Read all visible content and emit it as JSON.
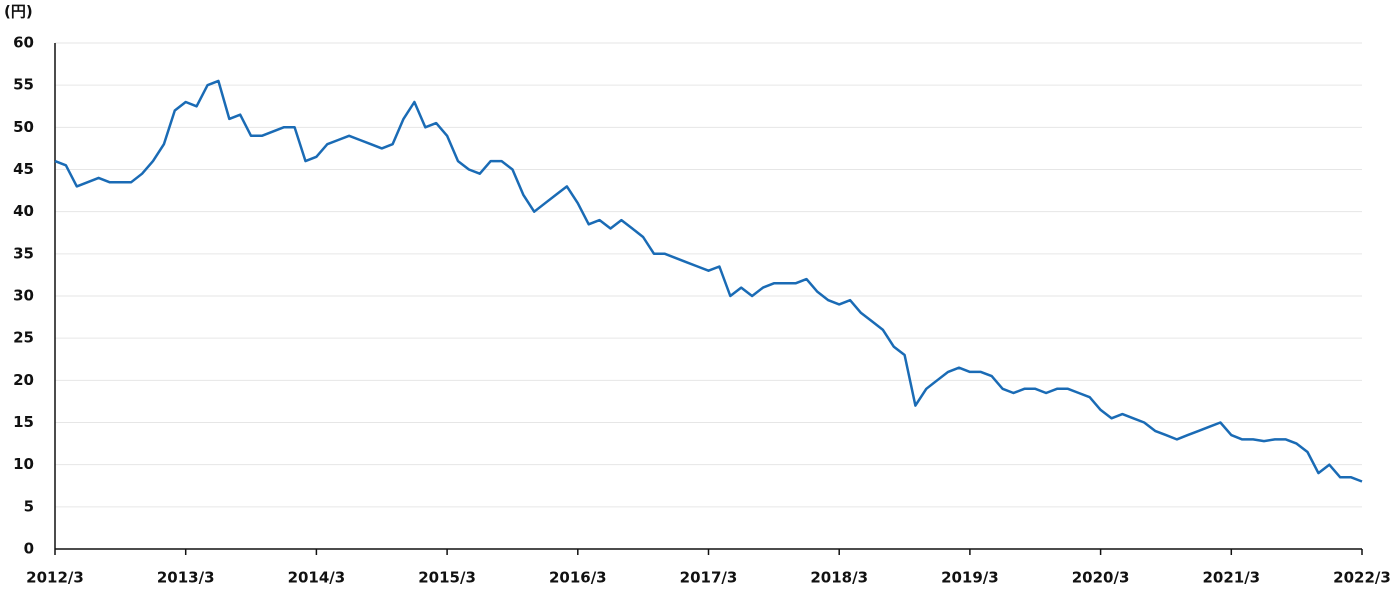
{
  "chart_data": {
    "type": "line",
    "y_unit": "(円)",
    "x": [
      "2012/3",
      "2012/4",
      "2012/5",
      "2012/6",
      "2012/7",
      "2012/8",
      "2012/9",
      "2012/10",
      "2012/11",
      "2012/12",
      "2013/1",
      "2013/2",
      "2013/3",
      "2013/4",
      "2013/5",
      "2013/6",
      "2013/7",
      "2013/8",
      "2013/9",
      "2013/10",
      "2013/11",
      "2013/12",
      "2014/1",
      "2014/2",
      "2014/3",
      "2014/4",
      "2014/5",
      "2014/6",
      "2014/7",
      "2014/8",
      "2014/9",
      "2014/10",
      "2014/11",
      "2014/12",
      "2015/1",
      "2015/2",
      "2015/3",
      "2015/4",
      "2015/5",
      "2015/6",
      "2015/7",
      "2015/8",
      "2015/9",
      "2015/10",
      "2015/11",
      "2015/12",
      "2016/1",
      "2016/2",
      "2016/3",
      "2016/4",
      "2016/5",
      "2016/6",
      "2016/7",
      "2016/8",
      "2016/9",
      "2016/10",
      "2016/11",
      "2016/12",
      "2017/1",
      "2017/2",
      "2017/3",
      "2017/4",
      "2017/5",
      "2017/6",
      "2017/7",
      "2017/8",
      "2017/9",
      "2017/10",
      "2017/11",
      "2017/12",
      "2018/1",
      "2018/2",
      "2018/3",
      "2018/4",
      "2018/5",
      "2018/6",
      "2018/7",
      "2018/8",
      "2018/9",
      "2018/10",
      "2018/11",
      "2018/12",
      "2019/1",
      "2019/2",
      "2019/3",
      "2019/4",
      "2019/5",
      "2019/6",
      "2019/7",
      "2019/8",
      "2019/9",
      "2019/10",
      "2019/11",
      "2019/12",
      "2020/1",
      "2020/2",
      "2020/3",
      "2020/4",
      "2020/5",
      "2020/6",
      "2020/7",
      "2020/8",
      "2020/9",
      "2020/10",
      "2020/11",
      "2020/12",
      "2021/1",
      "2021/2",
      "2021/3",
      "2021/4",
      "2021/5",
      "2021/6",
      "2021/7",
      "2021/8",
      "2021/9",
      "2021/10",
      "2021/11",
      "2021/12",
      "2022/1",
      "2022/2",
      "2022/3"
    ],
    "series": [
      {
        "color": "#1a6bb5",
        "values": [
          46,
          45.5,
          43,
          43.5,
          44,
          43.5,
          43.5,
          43.5,
          44.5,
          46,
          48,
          52,
          53,
          52.5,
          55,
          55.5,
          51,
          51.5,
          49,
          49,
          49.5,
          50,
          50,
          46,
          46.5,
          48,
          48.5,
          49,
          48.5,
          48,
          47.5,
          48,
          51,
          53,
          50,
          50.5,
          49,
          46,
          45,
          44.5,
          46,
          46,
          45,
          42,
          40,
          41,
          42,
          43,
          41,
          38.5,
          39,
          38,
          39,
          38,
          37,
          35,
          35,
          34.5,
          34,
          33.5,
          33,
          33.5,
          30,
          31,
          30,
          31,
          31.5,
          31.5,
          31.5,
          32,
          30.5,
          29.5,
          29,
          29.5,
          28,
          27,
          26,
          24,
          23,
          17,
          19,
          20,
          21,
          21.5,
          21,
          21,
          20.5,
          19,
          18.5,
          19,
          19,
          18.5,
          19,
          19,
          18.5,
          18,
          16.5,
          15.5,
          16,
          15.5,
          15,
          14,
          13.5,
          13,
          13.5,
          14,
          14.5,
          15,
          13.5,
          13,
          13,
          12.8,
          13,
          13,
          12.5,
          11.5,
          9,
          10,
          8.5,
          8.5,
          8
        ]
      }
    ],
    "ylim": [
      0,
      60
    ],
    "yticks": [
      0,
      5,
      10,
      15,
      20,
      25,
      30,
      35,
      40,
      45,
      50,
      55,
      60
    ],
    "grid": true
  }
}
